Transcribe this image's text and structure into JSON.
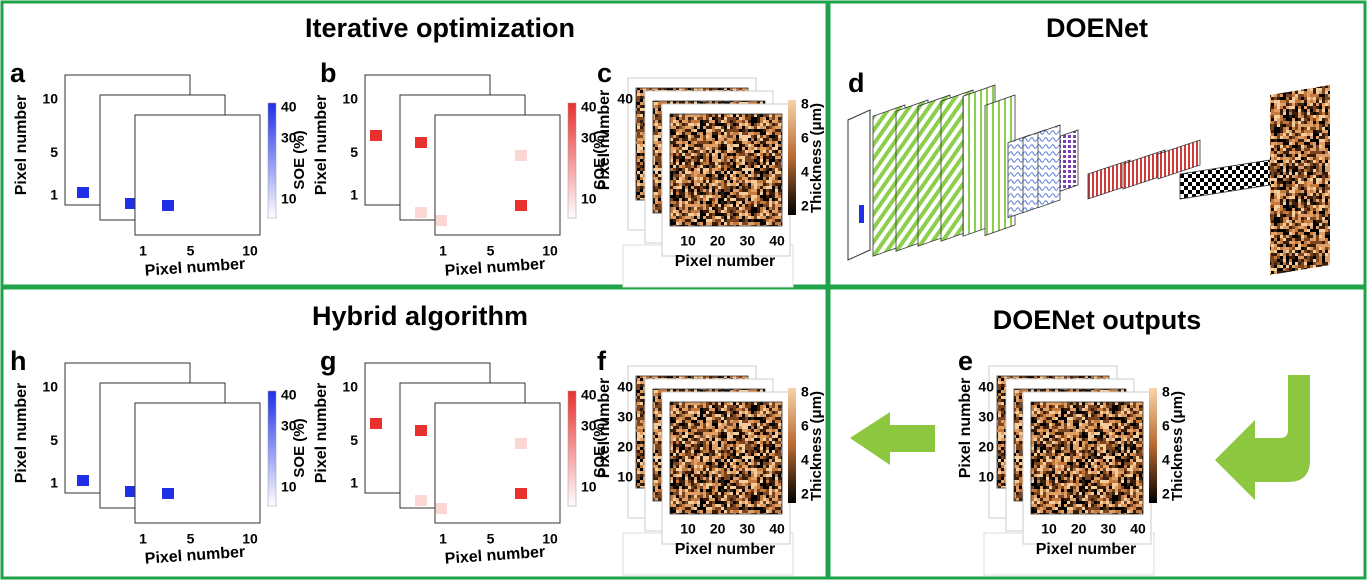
{
  "sections": [
    {
      "title": "Iterative optimization"
    },
    {
      "title": "DOENet"
    },
    {
      "title": "Hybrid algorithm"
    },
    {
      "title": "DOENet outputs"
    }
  ],
  "panels": [
    {
      "letter": "a",
      "y_label": "Pixel number",
      "y_ticks": [
        10,
        5,
        1
      ],
      "x_label": "Pixel number",
      "x_ticks": [
        1,
        5,
        10
      ],
      "colorbar_label": "SOE (%)",
      "colorbar_ticks": [
        40,
        30,
        10
      ]
    },
    {
      "letter": "b",
      "y_label": "Pixel number",
      "y_ticks": [
        10,
        5,
        1
      ],
      "x_label": "Pixel number",
      "x_ticks": [
        1,
        5,
        10
      ],
      "colorbar_label": "SOE (%)",
      "colorbar_ticks": [
        40,
        30,
        10
      ]
    },
    {
      "letter": "c",
      "y_label": "Pixel number",
      "y_ticks": [
        40
      ],
      "x_label": "Pixel number",
      "x_ticks": [
        10,
        20,
        30,
        40
      ],
      "colorbar_label": "Thickness (μm)",
      "colorbar_ticks": [
        8,
        6,
        4,
        2
      ]
    },
    {
      "letter": "d"
    },
    {
      "letter": "e",
      "y_label": "Pixel number",
      "y_ticks": [
        40,
        30,
        20,
        10
      ],
      "x_label": "Pixel number",
      "x_ticks": [
        10,
        20,
        30,
        40
      ],
      "colorbar_label": "Thickness (μm)",
      "colorbar_ticks": [
        8,
        6,
        4,
        2
      ]
    },
    {
      "letter": "f",
      "y_label": "Pixel number",
      "y_ticks": [
        40,
        30,
        20,
        10
      ],
      "x_label": "Pixel number",
      "x_ticks": [
        10,
        20,
        30,
        40
      ],
      "colorbar_label": "Thickness (μm)",
      "colorbar_ticks": [
        8,
        6,
        4,
        2
      ]
    },
    {
      "letter": "g",
      "y_label": "Pixel number",
      "y_ticks": [
        10,
        5,
        1
      ],
      "x_label": "Pixel number",
      "x_ticks": [
        1,
        5,
        10
      ],
      "colorbar_label": "SOE (%)",
      "colorbar_ticks": [
        40,
        30,
        10
      ]
    },
    {
      "letter": "h",
      "y_label": "Pixel number",
      "y_ticks": [
        10,
        5,
        1
      ],
      "x_label": "Pixel number",
      "x_ticks": [
        1,
        5,
        10
      ],
      "colorbar_label": "SOE (%)",
      "colorbar_ticks": [
        40,
        30,
        10
      ]
    }
  ]
}
